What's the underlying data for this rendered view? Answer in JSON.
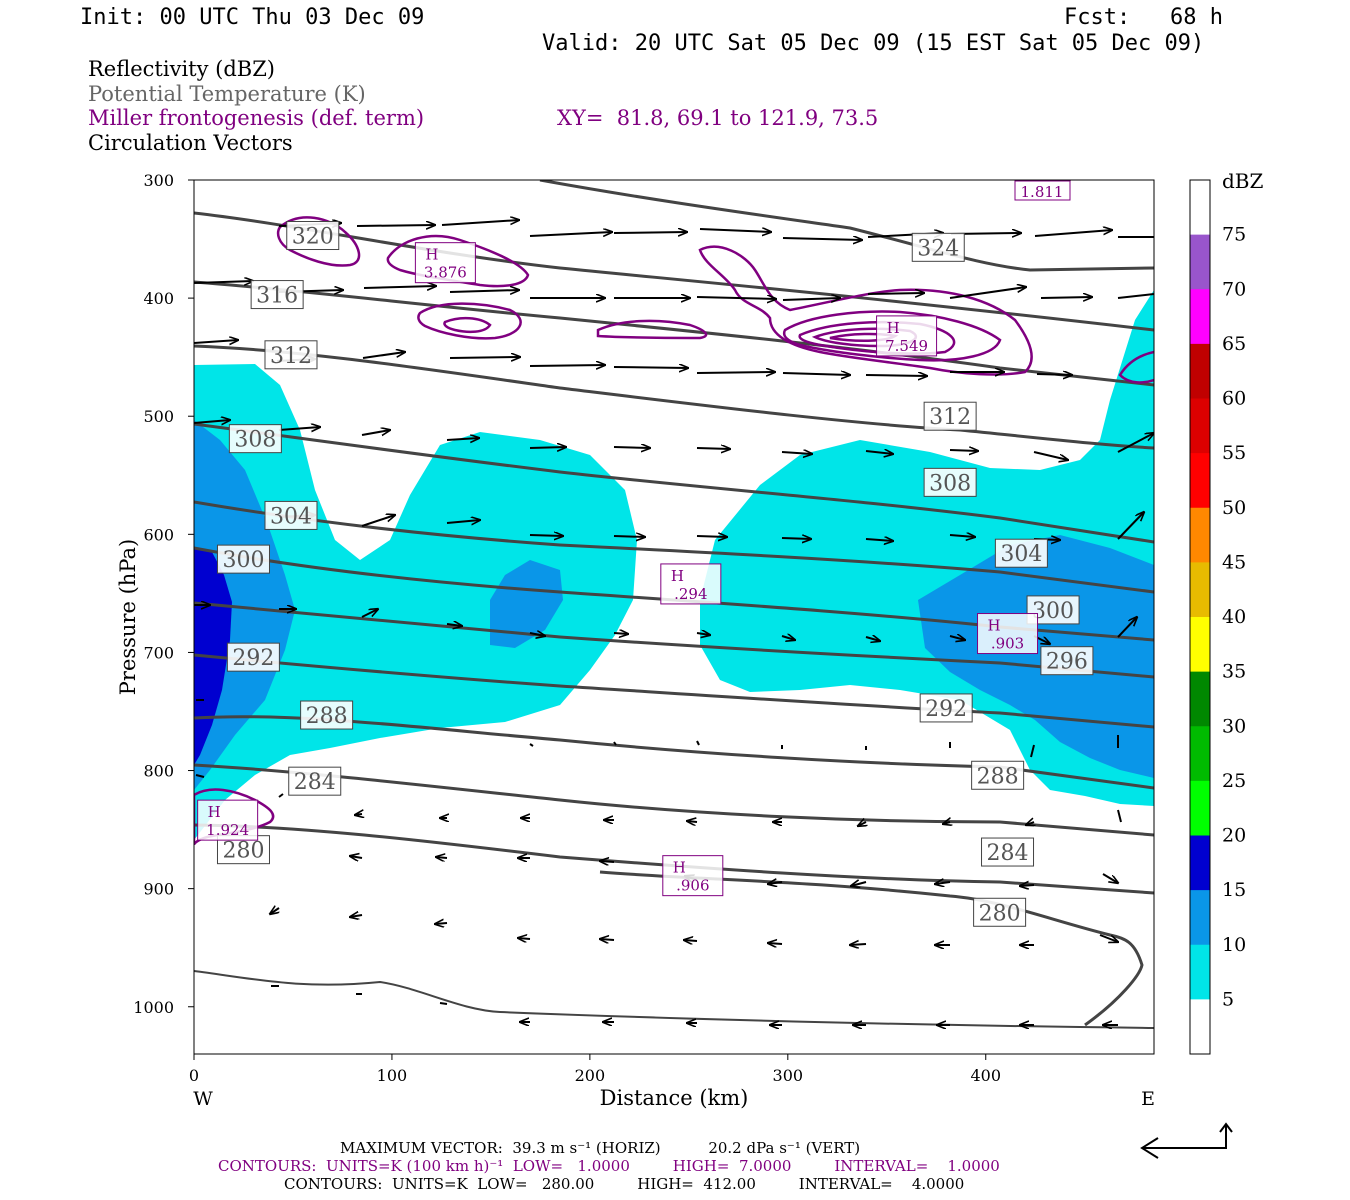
{
  "header": {
    "init": "Init: 00 UTC Thu 03 Dec 09",
    "fcst": "Fcst:   68 h",
    "valid": "Valid: 20 UTC Sat 05 Dec 09 (15 EST Sat 05 Dec 09)"
  },
  "legend": {
    "line1": "Reflectivity (dBZ)",
    "line2": "Potential Temperature (K)",
    "line3": "Miller frontogenesis (def. term)",
    "xy": "XY=  81.8, 69.1 to 121.9, 73.5",
    "line4": "Circulation Vectors"
  },
  "colors": {
    "theta": "#444444",
    "fronto": "#800080",
    "refl5": "#00e5e8",
    "refl10": "#0a96e8",
    "refl15": "#0000d0"
  },
  "chart_data": {
    "type": "contour",
    "xlabel": "Distance (km)",
    "ylabel": "Pressure (hPa)",
    "x_ticks": [
      "0",
      "100",
      "200",
      "300",
      "400"
    ],
    "y_ticks": [
      "300",
      "400",
      "500",
      "600",
      "700",
      "800",
      "900",
      "1000"
    ],
    "xlim": [
      0,
      485
    ],
    "ylim": [
      300,
      1040
    ],
    "left_end": "W",
    "right_end": "E",
    "colorbar": {
      "unit": "dBZ",
      "labels": [
        "75",
        "70",
        "65",
        "60",
        "55",
        "50",
        "45",
        "40",
        "35",
        "30",
        "25",
        "20",
        "15",
        "10",
        "5"
      ],
      "colors": [
        "#ffffff",
        "#9955cc",
        "#ff00ff",
        "#c00000",
        "#dd0000",
        "#ff0000",
        "#ff8800",
        "#e8bb00",
        "#ffff00",
        "#008800",
        "#00bb00",
        "#00ff00",
        "#0000d0",
        "#0a96e8",
        "#00e5e8",
        "#ffffff"
      ]
    },
    "theta_labels": [
      {
        "text": "320",
        "x": 60,
        "p": 347
      },
      {
        "text": "324",
        "x": 376,
        "p": 357
      },
      {
        "text": "316",
        "x": 42,
        "p": 397
      },
      {
        "text": "312",
        "x": 49,
        "p": 448
      },
      {
        "text": "312",
        "x": 382,
        "p": 500
      },
      {
        "text": "308",
        "x": 31,
        "p": 519
      },
      {
        "text": "308",
        "x": 382,
        "p": 556
      },
      {
        "text": "304",
        "x": 49,
        "p": 584
      },
      {
        "text": "304",
        "x": 418,
        "p": 616
      },
      {
        "text": "300",
        "x": 25,
        "p": 621
      },
      {
        "text": "300",
        "x": 434,
        "p": 664
      },
      {
        "text": "296",
        "x": 441,
        "p": 707
      },
      {
        "text": "292",
        "x": 30,
        "p": 704
      },
      {
        "text": "292",
        "x": 380,
        "p": 747
      },
      {
        "text": "288",
        "x": 67,
        "p": 753
      },
      {
        "text": "288",
        "x": 406,
        "p": 804
      },
      {
        "text": "284",
        "x": 61,
        "p": 809
      },
      {
        "text": "284",
        "x": 411,
        "p": 869
      },
      {
        "text": "280",
        "x": 25,
        "p": 867
      },
      {
        "text": "280",
        "x": 407,
        "p": 920
      }
    ],
    "fronto_maxima": [
      {
        "label": "H",
        "value": "3.876",
        "x": 127,
        "p": 370
      },
      {
        "label": "H",
        "value": "7.549",
        "x": 360,
        "p": 432
      },
      {
        "label": "H",
        "value": ".294",
        "x": 251,
        "p": 642
      },
      {
        "label": "H",
        "value": ".903",
        "x": 411,
        "p": 684
      },
      {
        "label": "H",
        "value": "1.924",
        "x": 17,
        "p": 842
      },
      {
        "label": "H",
        "value": ".906",
        "x": 252,
        "p": 889
      }
    ],
    "fronto_top_value": "1.811",
    "footer": {
      "maxvec": "MAXIMUM VECTOR:  39.3 m s⁻¹ (HORIZ)          20.2 dPa s⁻¹ (VERT)",
      "contours1": "CONTOURS:  UNITS=K (100 km h)⁻¹  LOW=   1.0000         HIGH=  7.0000         INTERVAL=    1.0000",
      "contours2": "CONTOURS:  UNITS=K  LOW=   280.00         HIGH=  412.00         INTERVAL=    4.0000"
    }
  }
}
